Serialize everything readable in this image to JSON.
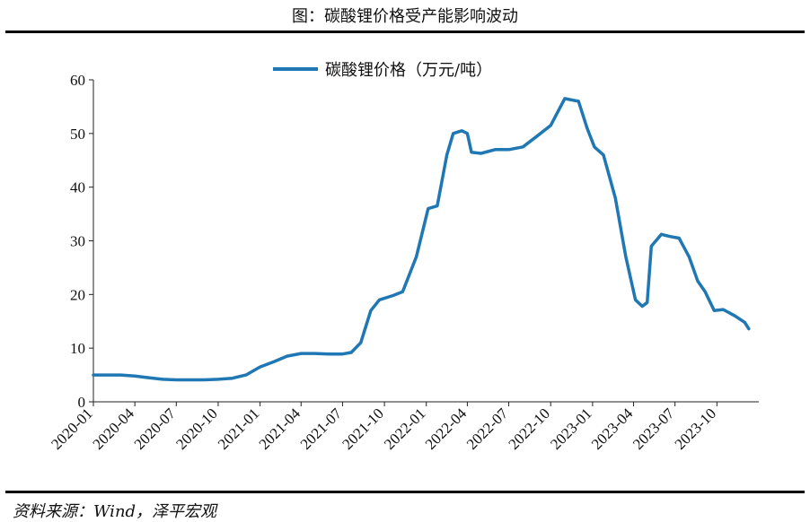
{
  "figure": {
    "title": "图：碳酸锂价格受产能影响波动",
    "source": "资料来源：Wind，泽平宏观"
  },
  "chart_data": {
    "type": "line",
    "title": "",
    "xlabel": "",
    "ylabel": "",
    "ylim": [
      0,
      60
    ],
    "yticks": [
      0,
      10,
      20,
      30,
      40,
      50,
      60
    ],
    "xlim": [
      "2020-01",
      "2023-12"
    ],
    "xticks": [
      "2020-01",
      "2020-04",
      "2020-07",
      "2020-10",
      "2021-01",
      "2021-04",
      "2021-07",
      "2021-10",
      "2022-01",
      "2022-04",
      "2022-07",
      "2022-10",
      "2023-01",
      "2023-04",
      "2023-07",
      "2023-10"
    ],
    "grid": false,
    "legend": "top-center",
    "line_color": "#1f77b4",
    "series": [
      {
        "name": "碳酸锂价格（万元/吨）",
        "points": [
          [
            "2020-01-01",
            5.0
          ],
          [
            "2020-02-01",
            5.0
          ],
          [
            "2020-03-01",
            5.0
          ],
          [
            "2020-04-01",
            4.8
          ],
          [
            "2020-05-01",
            4.5
          ],
          [
            "2020-06-01",
            4.2
          ],
          [
            "2020-07-01",
            4.1
          ],
          [
            "2020-08-01",
            4.1
          ],
          [
            "2020-09-01",
            4.1
          ],
          [
            "2020-10-01",
            4.2
          ],
          [
            "2020-11-01",
            4.4
          ],
          [
            "2020-12-01",
            5.0
          ],
          [
            "2021-01-01",
            6.5
          ],
          [
            "2021-02-01",
            7.5
          ],
          [
            "2021-03-01",
            8.5
          ],
          [
            "2021-04-01",
            9.0
          ],
          [
            "2021-05-01",
            9.0
          ],
          [
            "2021-06-01",
            8.9
          ],
          [
            "2021-07-01",
            8.9
          ],
          [
            "2021-07-20",
            9.2
          ],
          [
            "2021-08-10",
            11.0
          ],
          [
            "2021-09-01",
            17.0
          ],
          [
            "2021-09-20",
            19.0
          ],
          [
            "2021-10-20",
            19.8
          ],
          [
            "2021-11-10",
            20.5
          ],
          [
            "2021-12-10",
            27.0
          ],
          [
            "2022-01-05",
            36.0
          ],
          [
            "2022-01-25",
            36.5
          ],
          [
            "2022-02-15",
            46.0
          ],
          [
            "2022-03-01",
            50.0
          ],
          [
            "2022-03-20",
            50.5
          ],
          [
            "2022-04-01",
            50.0
          ],
          [
            "2022-04-10",
            46.5
          ],
          [
            "2022-05-01",
            46.3
          ],
          [
            "2022-06-01",
            47.0
          ],
          [
            "2022-07-01",
            47.0
          ],
          [
            "2022-08-01",
            47.5
          ],
          [
            "2022-09-01",
            49.5
          ],
          [
            "2022-10-01",
            51.5
          ],
          [
            "2022-11-01",
            56.5
          ],
          [
            "2022-12-01",
            56.0
          ],
          [
            "2022-12-20",
            51.0
          ],
          [
            "2023-01-05",
            47.5
          ],
          [
            "2023-01-25",
            46.0
          ],
          [
            "2023-02-20",
            38.0
          ],
          [
            "2023-03-15",
            27.0
          ],
          [
            "2023-04-05",
            19.0
          ],
          [
            "2023-04-20",
            17.8
          ],
          [
            "2023-05-01",
            18.5
          ],
          [
            "2023-05-10",
            29.0
          ],
          [
            "2023-06-01",
            31.2
          ],
          [
            "2023-06-20",
            30.8
          ],
          [
            "2023-07-10",
            30.5
          ],
          [
            "2023-08-01",
            27.0
          ],
          [
            "2023-08-20",
            22.5
          ],
          [
            "2023-09-05",
            20.5
          ],
          [
            "2023-09-25",
            17.0
          ],
          [
            "2023-10-15",
            17.2
          ],
          [
            "2023-11-10",
            16.0
          ],
          [
            "2023-12-01",
            14.8
          ],
          [
            "2023-12-10",
            13.6
          ]
        ]
      }
    ]
  }
}
